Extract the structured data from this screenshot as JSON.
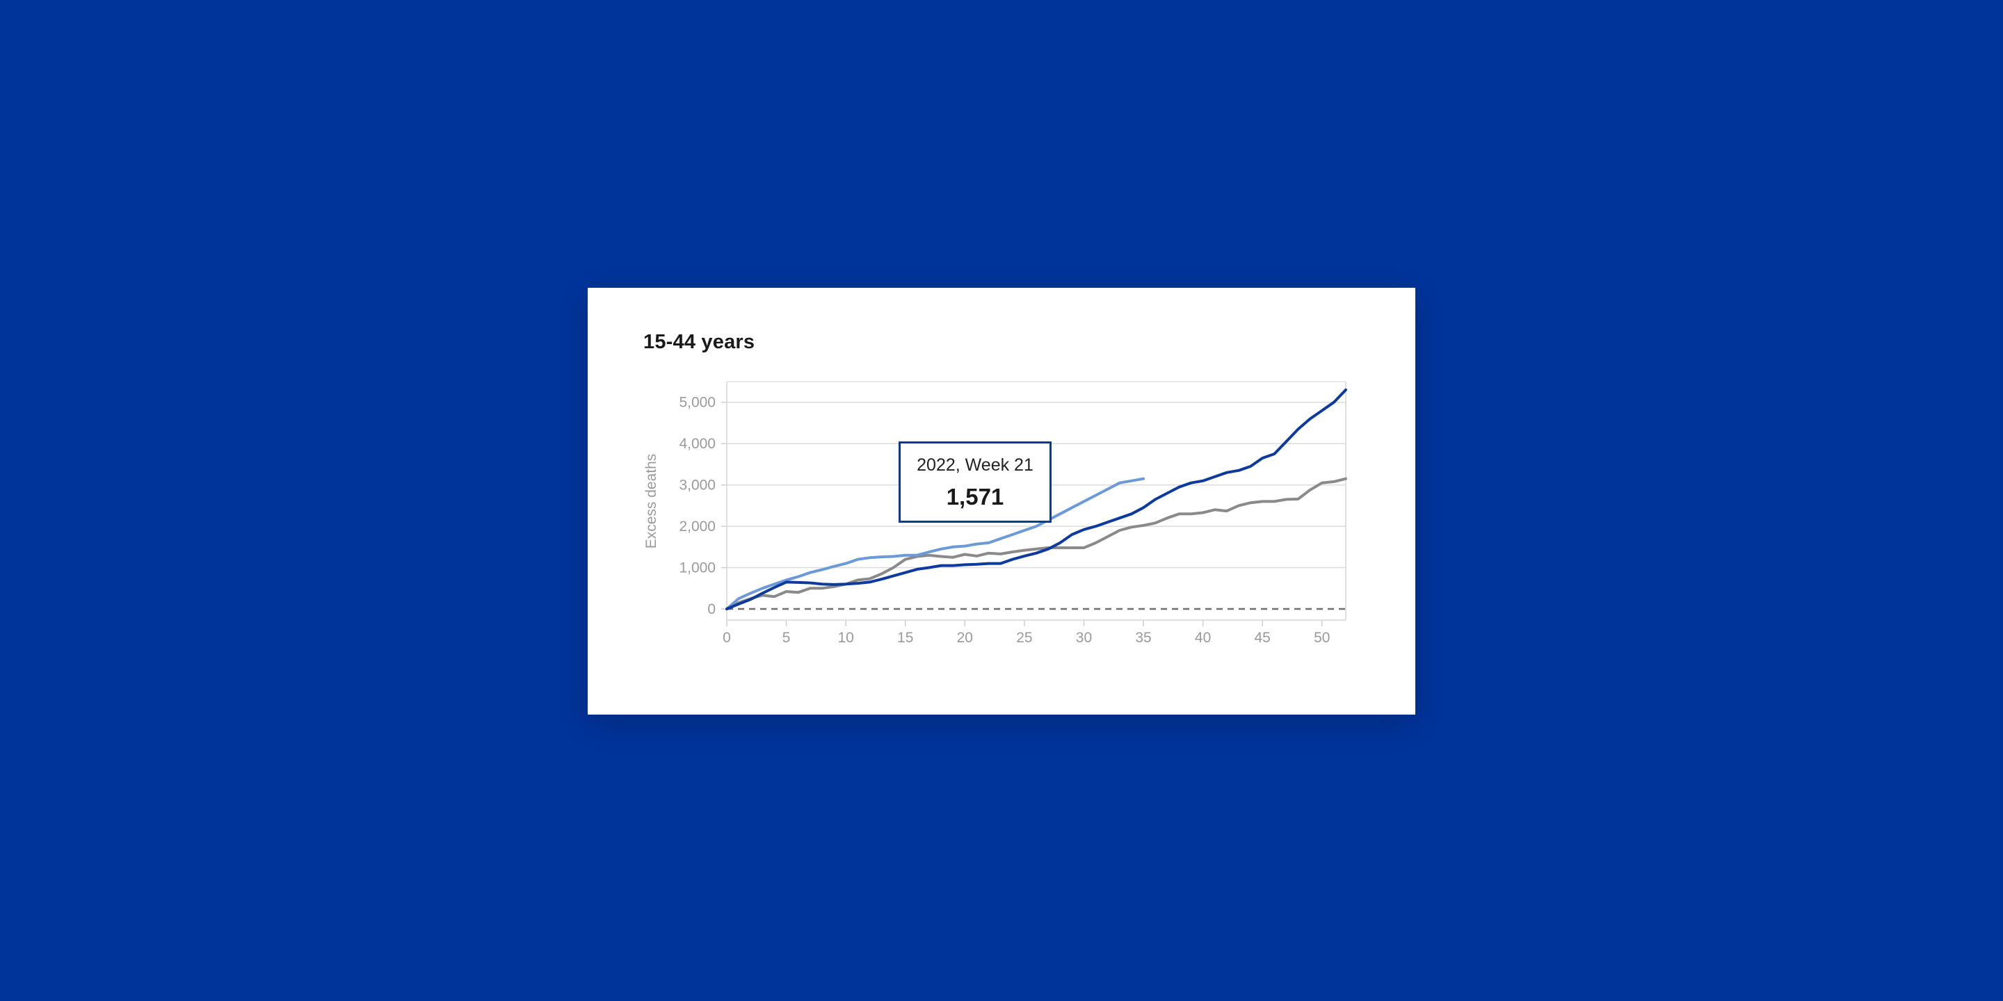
{
  "chart_data": {
    "type": "line",
    "title": "15-44 years",
    "xlabel": "",
    "ylabel": "Excess deaths",
    "xlim": [
      0,
      52
    ],
    "ylim": [
      0,
      5500
    ],
    "x_ticks": [
      0,
      5,
      10,
      15,
      20,
      25,
      30,
      35,
      40,
      45,
      50
    ],
    "y_ticks": [
      0,
      1000,
      2000,
      3000,
      4000,
      5000
    ],
    "x_tick_labels": [
      "0",
      "5",
      "10",
      "15",
      "20",
      "25",
      "30",
      "35",
      "40",
      "45",
      "50"
    ],
    "y_tick_labels": [
      "0",
      "1,000",
      "2,000",
      "3,000",
      "4,000",
      "5,000"
    ],
    "grid": true,
    "zero_line_style": "dashed",
    "series": [
      {
        "color": "#8a8a8a",
        "x": [
          0,
          1,
          2,
          3,
          4,
          5,
          6,
          7,
          8,
          9,
          10,
          11,
          12,
          13,
          14,
          15,
          16,
          17,
          18,
          19,
          20,
          21,
          22,
          23,
          24,
          25,
          26,
          27,
          28,
          29,
          30,
          31,
          32,
          33,
          34,
          35,
          36,
          37,
          38,
          39,
          40,
          41,
          42,
          43,
          44,
          45,
          46,
          47,
          48,
          49,
          50,
          51,
          52
        ],
        "values": [
          0,
          150,
          250,
          330,
          300,
          420,
          400,
          500,
          500,
          540,
          600,
          700,
          730,
          850,
          1000,
          1200,
          1270,
          1300,
          1270,
          1250,
          1320,
          1280,
          1350,
          1330,
          1380,
          1420,
          1450,
          1480,
          1480,
          1480,
          1480,
          1600,
          1750,
          1900,
          1980,
          2020,
          2080,
          2200,
          2300,
          2300,
          2330,
          2400,
          2370,
          2500,
          2570,
          2600,
          2600,
          2650,
          2660,
          2880,
          3050,
          3080,
          3150
        ]
      },
      {
        "color": "#6b9ad8",
        "x": [
          0,
          1,
          2,
          3,
          4,
          5,
          6,
          7,
          8,
          9,
          10,
          11,
          12,
          13,
          14,
          15,
          16,
          17,
          18,
          19,
          20,
          21,
          22,
          23,
          24,
          25,
          26,
          27,
          28,
          29,
          30,
          31,
          32,
          33,
          34,
          35
        ],
        "values": [
          0,
          250,
          380,
          500,
          600,
          700,
          780,
          880,
          950,
          1030,
          1100,
          1200,
          1240,
          1260,
          1270,
          1300,
          1300,
          1380,
          1450,
          1500,
          1520,
          1571,
          1600,
          1700,
          1800,
          1900,
          2000,
          2150,
          2300,
          2450,
          2600,
          2750,
          2900,
          3050,
          3100,
          3150
        ]
      },
      {
        "color": "#0d3a9e",
        "x": [
          0,
          1,
          2,
          3,
          4,
          5,
          6,
          7,
          8,
          9,
          10,
          11,
          12,
          13,
          14,
          15,
          16,
          17,
          18,
          19,
          20,
          21,
          22,
          23,
          24,
          25,
          26,
          27,
          28,
          29,
          30,
          31,
          32,
          33,
          34,
          35,
          36,
          37,
          38,
          39,
          40,
          41,
          42,
          43,
          44,
          45,
          46,
          47,
          48,
          49,
          50,
          51,
          52
        ],
        "values": [
          0,
          120,
          230,
          380,
          520,
          650,
          640,
          630,
          600,
          590,
          600,
          620,
          650,
          720,
          800,
          880,
          960,
          1000,
          1050,
          1050,
          1070,
          1080,
          1100,
          1100,
          1200,
          1280,
          1350,
          1450,
          1600,
          1800,
          1920,
          2000,
          2100,
          2200,
          2300,
          2450,
          2650,
          2800,
          2950,
          3050,
          3100,
          3200,
          3300,
          3350,
          3450,
          3650,
          3750,
          4050,
          4350,
          4600,
          4800,
          5000,
          5300
        ]
      }
    ],
    "tooltip": {
      "label": "2022, Week 21",
      "value": "1,571"
    }
  }
}
